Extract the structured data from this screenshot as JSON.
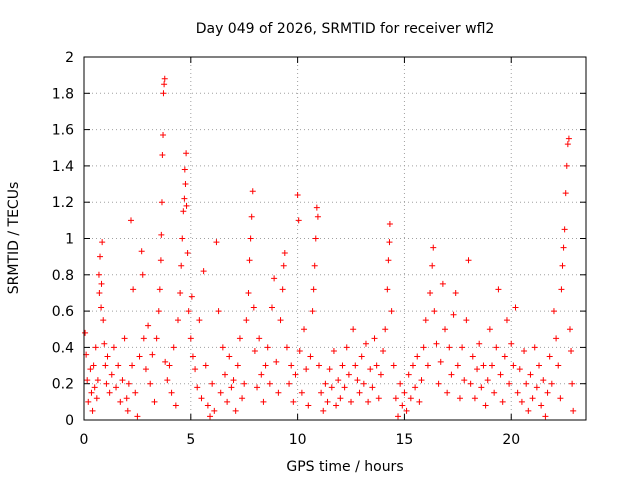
{
  "chart_data": {
    "type": "scatter",
    "title": "Day 049 of 2026, SRMTID for receiver wfl2",
    "xlabel": "GPS time / hours",
    "ylabel": "SRMTID / TECUs",
    "xlim": [
      0,
      23.5
    ],
    "ylim": [
      0,
      2
    ],
    "xticks": [
      0,
      5,
      10,
      15,
      20
    ],
    "xtick_labels": [
      "0",
      "5",
      "10",
      "15",
      "20"
    ],
    "yticks": [
      0,
      0.2,
      0.4,
      0.6,
      0.8,
      1,
      1.2,
      1.4,
      1.6,
      1.8,
      2
    ],
    "ytick_labels": [
      "0",
      "0.2",
      "0.4",
      "0.6",
      "0.8",
      "1",
      "1.2",
      "1.4",
      "1.6",
      "1.8",
      "2"
    ],
    "grid": true,
    "marker": "+",
    "color": "#ff0000",
    "series": [
      {
        "name": "SRMTID",
        "points": [
          [
            0.05,
            0.48
          ],
          [
            0.1,
            0.36
          ],
          [
            0.15,
            0.22
          ],
          [
            0.2,
            0.1
          ],
          [
            0.3,
            0.28
          ],
          [
            0.35,
            0.15
          ],
          [
            0.4,
            0.05
          ],
          [
            0.45,
            0.3
          ],
          [
            0.5,
            0.18
          ],
          [
            0.55,
            0.4
          ],
          [
            0.6,
            0.12
          ],
          [
            0.65,
            0.22
          ],
          [
            0.7,
            0.8
          ],
          [
            0.72,
            0.7
          ],
          [
            0.75,
            0.9
          ],
          [
            0.8,
            0.62
          ],
          [
            0.82,
            0.75
          ],
          [
            0.85,
            0.98
          ],
          [
            0.9,
            0.55
          ],
          [
            0.95,
            0.42
          ],
          [
            1.0,
            0.3
          ],
          [
            1.05,
            0.2
          ],
          [
            1.1,
            0.35
          ],
          [
            1.2,
            0.15
          ],
          [
            1.3,
            0.25
          ],
          [
            1.4,
            0.4
          ],
          [
            1.5,
            0.18
          ],
          [
            1.6,
            0.3
          ],
          [
            1.7,
            0.1
          ],
          [
            1.8,
            0.22
          ],
          [
            1.9,
            0.45
          ],
          [
            2.0,
            0.12
          ],
          [
            2.05,
            0.05
          ],
          [
            2.1,
            0.2
          ],
          [
            2.2,
            1.1
          ],
          [
            2.25,
            0.3
          ],
          [
            2.3,
            0.72
          ],
          [
            2.4,
            0.15
          ],
          [
            2.5,
            0.02
          ],
          [
            2.6,
            0.35
          ],
          [
            2.7,
            0.93
          ],
          [
            2.75,
            0.8
          ],
          [
            2.8,
            0.45
          ],
          [
            2.9,
            0.28
          ],
          [
            3.0,
            0.52
          ],
          [
            3.1,
            0.2
          ],
          [
            3.2,
            0.36
          ],
          [
            3.3,
            0.1
          ],
          [
            3.4,
            0.45
          ],
          [
            3.5,
            0.6
          ],
          [
            3.55,
            0.72
          ],
          [
            3.6,
            0.88
          ],
          [
            3.62,
            1.02
          ],
          [
            3.65,
            1.2
          ],
          [
            3.67,
            1.46
          ],
          [
            3.7,
            1.57
          ],
          [
            3.72,
            1.8
          ],
          [
            3.75,
            1.85
          ],
          [
            3.78,
            1.88
          ],
          [
            3.8,
            0.32
          ],
          [
            3.9,
            0.22
          ],
          [
            4.0,
            0.3
          ],
          [
            4.1,
            0.15
          ],
          [
            4.2,
            0.4
          ],
          [
            4.3,
            0.08
          ],
          [
            4.4,
            0.55
          ],
          [
            4.5,
            0.7
          ],
          [
            4.55,
            0.85
          ],
          [
            4.6,
            1.0
          ],
          [
            4.65,
            1.15
          ],
          [
            4.7,
            1.22
          ],
          [
            4.72,
            1.38
          ],
          [
            4.75,
            1.3
          ],
          [
            4.78,
            1.47
          ],
          [
            4.8,
            1.18
          ],
          [
            4.85,
            0.92
          ],
          [
            4.9,
            0.6
          ],
          [
            5.0,
            0.45
          ],
          [
            5.05,
            0.68
          ],
          [
            5.1,
            0.35
          ],
          [
            5.2,
            0.28
          ],
          [
            5.3,
            0.18
          ],
          [
            5.4,
            0.55
          ],
          [
            5.5,
            0.12
          ],
          [
            5.6,
            0.82
          ],
          [
            5.7,
            0.3
          ],
          [
            5.8,
            0.08
          ],
          [
            5.9,
            0.02
          ],
          [
            6.0,
            0.2
          ],
          [
            6.1,
            0.05
          ],
          [
            6.2,
            0.98
          ],
          [
            6.3,
            0.6
          ],
          [
            6.4,
            0.15
          ],
          [
            6.5,
            0.4
          ],
          [
            6.6,
            0.25
          ],
          [
            6.7,
            0.1
          ],
          [
            6.8,
            0.35
          ],
          [
            6.9,
            0.18
          ],
          [
            7.0,
            0.22
          ],
          [
            7.1,
            0.05
          ],
          [
            7.2,
            0.3
          ],
          [
            7.3,
            0.45
          ],
          [
            7.4,
            0.12
          ],
          [
            7.5,
            0.2
          ],
          [
            7.6,
            0.55
          ],
          [
            7.7,
            0.7
          ],
          [
            7.75,
            0.88
          ],
          [
            7.8,
            1.0
          ],
          [
            7.85,
            1.12
          ],
          [
            7.9,
            1.26
          ],
          [
            7.95,
            0.62
          ],
          [
            8.0,
            0.38
          ],
          [
            8.1,
            0.18
          ],
          [
            8.2,
            0.45
          ],
          [
            8.3,
            0.25
          ],
          [
            8.4,
            0.1
          ],
          [
            8.5,
            0.3
          ],
          [
            8.6,
            0.4
          ],
          [
            8.7,
            0.2
          ],
          [
            8.8,
            0.62
          ],
          [
            8.9,
            0.78
          ],
          [
            9.0,
            0.32
          ],
          [
            9.1,
            0.15
          ],
          [
            9.2,
            0.55
          ],
          [
            9.3,
            0.72
          ],
          [
            9.35,
            0.85
          ],
          [
            9.4,
            0.92
          ],
          [
            9.5,
            0.4
          ],
          [
            9.6,
            0.2
          ],
          [
            9.7,
            0.3
          ],
          [
            9.8,
            0.1
          ],
          [
            9.9,
            0.25
          ],
          [
            10.0,
            1.24
          ],
          [
            10.05,
            1.1
          ],
          [
            10.1,
            0.38
          ],
          [
            10.2,
            0.15
          ],
          [
            10.3,
            0.5
          ],
          [
            10.4,
            0.28
          ],
          [
            10.5,
            0.08
          ],
          [
            10.6,
            0.35
          ],
          [
            10.7,
            0.6
          ],
          [
            10.75,
            0.72
          ],
          [
            10.8,
            0.85
          ],
          [
            10.85,
            1.0
          ],
          [
            10.9,
            1.17
          ],
          [
            10.95,
            1.12
          ],
          [
            11.0,
            0.3
          ],
          [
            11.1,
            0.15
          ],
          [
            11.2,
            0.05
          ],
          [
            11.3,
            0.2
          ],
          [
            11.4,
            0.1
          ],
          [
            11.5,
            0.28
          ],
          [
            11.6,
            0.18
          ],
          [
            11.7,
            0.38
          ],
          [
            11.8,
            0.08
          ],
          [
            11.9,
            0.22
          ],
          [
            12.0,
            0.12
          ],
          [
            12.1,
            0.3
          ],
          [
            12.2,
            0.18
          ],
          [
            12.3,
            0.4
          ],
          [
            12.4,
            0.25
          ],
          [
            12.5,
            0.1
          ],
          [
            12.6,
            0.5
          ],
          [
            12.7,
            0.3
          ],
          [
            12.8,
            0.22
          ],
          [
            12.9,
            0.15
          ],
          [
            13.0,
            0.35
          ],
          [
            13.1,
            0.2
          ],
          [
            13.2,
            0.42
          ],
          [
            13.3,
            0.1
          ],
          [
            13.4,
            0.28
          ],
          [
            13.5,
            0.18
          ],
          [
            13.6,
            0.45
          ],
          [
            13.7,
            0.3
          ],
          [
            13.8,
            0.12
          ],
          [
            13.9,
            0.25
          ],
          [
            14.0,
            0.38
          ],
          [
            14.1,
            0.5
          ],
          [
            14.2,
            0.72
          ],
          [
            14.25,
            0.88
          ],
          [
            14.3,
            0.98
          ],
          [
            14.32,
            1.08
          ],
          [
            14.4,
            0.6
          ],
          [
            14.5,
            0.3
          ],
          [
            14.6,
            0.12
          ],
          [
            14.7,
            0.02
          ],
          [
            14.8,
            0.2
          ],
          [
            14.9,
            0.08
          ],
          [
            15.0,
            0.15
          ],
          [
            15.1,
            0.05
          ],
          [
            15.2,
            0.25
          ],
          [
            15.3,
            0.12
          ],
          [
            15.4,
            0.3
          ],
          [
            15.5,
            0.18
          ],
          [
            15.6,
            0.35
          ],
          [
            15.7,
            0.1
          ],
          [
            15.8,
            0.22
          ],
          [
            15.9,
            0.4
          ],
          [
            16.0,
            0.55
          ],
          [
            16.1,
            0.3
          ],
          [
            16.2,
            0.7
          ],
          [
            16.3,
            0.85
          ],
          [
            16.35,
            0.95
          ],
          [
            16.4,
            0.6
          ],
          [
            16.5,
            0.42
          ],
          [
            16.6,
            0.2
          ],
          [
            16.7,
            0.32
          ],
          [
            16.8,
            0.75
          ],
          [
            16.9,
            0.5
          ],
          [
            17.0,
            0.15
          ],
          [
            17.1,
            0.4
          ],
          [
            17.2,
            0.25
          ],
          [
            17.3,
            0.58
          ],
          [
            17.4,
            0.7
          ],
          [
            17.5,
            0.3
          ],
          [
            17.6,
            0.12
          ],
          [
            17.7,
            0.4
          ],
          [
            17.8,
            0.22
          ],
          [
            17.9,
            0.55
          ],
          [
            18.0,
            0.88
          ],
          [
            18.1,
            0.2
          ],
          [
            18.2,
            0.35
          ],
          [
            18.3,
            0.12
          ],
          [
            18.4,
            0.28
          ],
          [
            18.5,
            0.42
          ],
          [
            18.6,
            0.18
          ],
          [
            18.7,
            0.3
          ],
          [
            18.8,
            0.08
          ],
          [
            18.9,
            0.22
          ],
          [
            19.0,
            0.5
          ],
          [
            19.1,
            0.3
          ],
          [
            19.2,
            0.15
          ],
          [
            19.3,
            0.4
          ],
          [
            19.4,
            0.72
          ],
          [
            19.5,
            0.25
          ],
          [
            19.6,
            0.1
          ],
          [
            19.7,
            0.35
          ],
          [
            19.8,
            0.55
          ],
          [
            19.9,
            0.2
          ],
          [
            20.0,
            0.42
          ],
          [
            20.1,
            0.3
          ],
          [
            20.2,
            0.62
          ],
          [
            20.3,
            0.15
          ],
          [
            20.4,
            0.28
          ],
          [
            20.5,
            0.1
          ],
          [
            20.6,
            0.38
          ],
          [
            20.7,
            0.2
          ],
          [
            20.8,
            0.05
          ],
          [
            20.9,
            0.25
          ],
          [
            21.0,
            0.12
          ],
          [
            21.1,
            0.4
          ],
          [
            21.2,
            0.18
          ],
          [
            21.3,
            0.3
          ],
          [
            21.4,
            0.08
          ],
          [
            21.5,
            0.22
          ],
          [
            21.6,
            0.02
          ],
          [
            21.7,
            0.15
          ],
          [
            21.8,
            0.35
          ],
          [
            21.9,
            0.2
          ],
          [
            22.0,
            0.6
          ],
          [
            22.1,
            0.45
          ],
          [
            22.2,
            0.3
          ],
          [
            22.3,
            0.12
          ],
          [
            22.35,
            0.72
          ],
          [
            22.4,
            0.85
          ],
          [
            22.45,
            0.95
          ],
          [
            22.5,
            1.05
          ],
          [
            22.55,
            1.25
          ],
          [
            22.6,
            1.4
          ],
          [
            22.65,
            1.52
          ],
          [
            22.7,
            1.55
          ],
          [
            22.75,
            0.5
          ],
          [
            22.8,
            0.38
          ],
          [
            22.85,
            0.2
          ],
          [
            22.9,
            0.05
          ]
        ]
      }
    ]
  }
}
